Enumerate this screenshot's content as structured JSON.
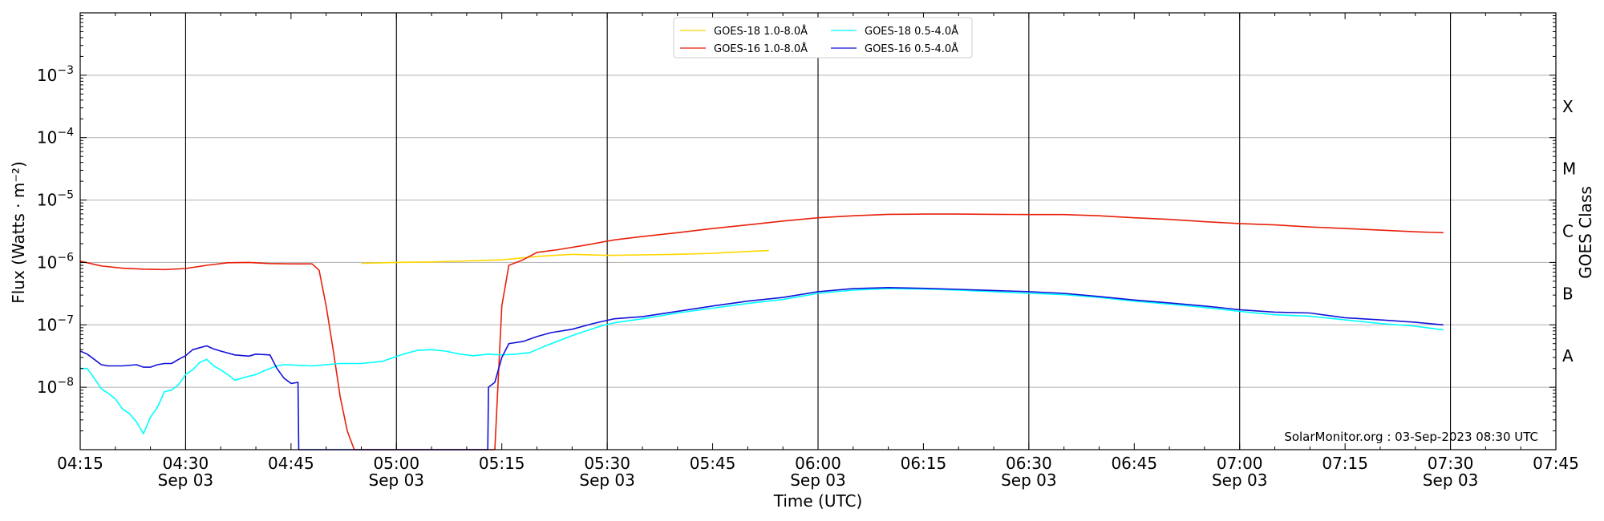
{
  "chart_data": {
    "type": "line",
    "xlabel": "Time (UTC)",
    "ylabel": "Flux (Watts · m⁻²)",
    "right_label": "GOES Class",
    "credit": "SolarMonitor.org : 03-Sep-2023 08:30 UTC",
    "x_unit": "minutes past 04:15 UTC, 03-Sep-2023",
    "xlim": [
      0,
      210
    ],
    "ylim": [
      1e-09,
      0.01
    ],
    "yscale": "log",
    "x_ticks": [
      {
        "x": 0,
        "time": "04:15",
        "date": ""
      },
      {
        "x": 15,
        "time": "04:30",
        "date": "Sep 03"
      },
      {
        "x": 30,
        "time": "04:45",
        "date": ""
      },
      {
        "x": 45,
        "time": "05:00",
        "date": "Sep 03"
      },
      {
        "x": 60,
        "time": "05:15",
        "date": ""
      },
      {
        "x": 75,
        "time": "05:30",
        "date": "Sep 03"
      },
      {
        "x": 90,
        "time": "05:45",
        "date": ""
      },
      {
        "x": 105,
        "time": "06:00",
        "date": "Sep 03"
      },
      {
        "x": 120,
        "time": "06:15",
        "date": ""
      },
      {
        "x": 135,
        "time": "06:30",
        "date": "Sep 03"
      },
      {
        "x": 150,
        "time": "06:45",
        "date": ""
      },
      {
        "x": 165,
        "time": "07:00",
        "date": "Sep 03"
      },
      {
        "x": 180,
        "time": "07:15",
        "date": ""
      },
      {
        "x": 195,
        "time": "07:30",
        "date": "Sep 03"
      },
      {
        "x": 210,
        "time": "07:45",
        "date": ""
      }
    ],
    "vertical_lines_x": [
      15,
      45,
      75,
      105,
      135,
      165,
      195
    ],
    "y_ticks": [
      {
        "value": 1e-08,
        "base": "10",
        "exp": "−8"
      },
      {
        "value": 1e-07,
        "base": "10",
        "exp": "−7"
      },
      {
        "value": 1e-06,
        "base": "10",
        "exp": "−6"
      },
      {
        "value": 1e-05,
        "base": "10",
        "exp": "−5"
      },
      {
        "value": 0.0001,
        "base": "10",
        "exp": "−4"
      },
      {
        "value": 0.001,
        "base": "10",
        "exp": "−3"
      }
    ],
    "grid_y": [
      1e-08,
      1e-07,
      1e-06,
      1e-05,
      0.0001,
      0.001
    ],
    "goes_classes": [
      {
        "label": "A",
        "value": 3.16e-08
      },
      {
        "label": "B",
        "value": 3.16e-07
      },
      {
        "label": "C",
        "value": 3.16e-06
      },
      {
        "label": "M",
        "value": 3.16e-05
      },
      {
        "label": "X",
        "value": 0.000316
      }
    ],
    "legend_position": "top-center",
    "series": [
      {
        "name": "GOES-18 1.0-8.0Å",
        "color": "#ffd700",
        "points": [
          [
            40,
            9.7e-07
          ],
          [
            45,
            1e-06
          ],
          [
            50,
            1.02e-06
          ],
          [
            55,
            1.06e-06
          ],
          [
            60,
            1.1e-06
          ],
          [
            65,
            1.25e-06
          ],
          [
            70,
            1.35e-06
          ],
          [
            75,
            1.3e-06
          ],
          [
            80,
            1.32e-06
          ],
          [
            85,
            1.35e-06
          ],
          [
            90,
            1.4e-06
          ],
          [
            95,
            1.5e-06
          ],
          [
            98,
            1.55e-06
          ]
        ]
      },
      {
        "name": "GOES-16 1.0-8.0Å",
        "color": "#e8200b",
        "points": [
          [
            0,
            1.05e-06
          ],
          [
            3,
            8.8e-07
          ],
          [
            6,
            8.1e-07
          ],
          [
            9,
            7.8e-07
          ],
          [
            12,
            7.7e-07
          ],
          [
            15,
            8e-07
          ],
          [
            18,
            9e-07
          ],
          [
            21,
            9.9e-07
          ],
          [
            24,
            1e-06
          ],
          [
            27,
            9.6e-07
          ],
          [
            30,
            9.5e-07
          ],
          [
            33,
            9.5e-07
          ],
          [
            34,
            7.5e-07
          ],
          [
            35,
            2e-07
          ],
          [
            36,
            4e-08
          ],
          [
            37,
            7e-09
          ],
          [
            38,
            2e-09
          ],
          [
            39,
            1e-09
          ],
          [
            59,
            1e-09
          ],
          [
            60,
            2e-07
          ],
          [
            61,
            9e-07
          ],
          [
            63,
            1.1e-06
          ],
          [
            65,
            1.45e-06
          ],
          [
            68,
            1.6e-06
          ],
          [
            72,
            1.9e-06
          ],
          [
            76,
            2.3e-06
          ],
          [
            80,
            2.6e-06
          ],
          [
            85,
            3e-06
          ],
          [
            90,
            3.5e-06
          ],
          [
            95,
            4e-06
          ],
          [
            100,
            4.6e-06
          ],
          [
            105,
            5.2e-06
          ],
          [
            110,
            5.6e-06
          ],
          [
            115,
            5.9e-06
          ],
          [
            120,
            5.95e-06
          ],
          [
            125,
            5.95e-06
          ],
          [
            130,
            5.9e-06
          ],
          [
            135,
            5.85e-06
          ],
          [
            140,
            5.85e-06
          ],
          [
            145,
            5.6e-06
          ],
          [
            150,
            5.2e-06
          ],
          [
            155,
            4.9e-06
          ],
          [
            160,
            4.5e-06
          ],
          [
            165,
            4.2e-06
          ],
          [
            170,
            4e-06
          ],
          [
            175,
            3.7e-06
          ],
          [
            180,
            3.5e-06
          ],
          [
            185,
            3.3e-06
          ],
          [
            190,
            3.1e-06
          ],
          [
            194,
            3e-06
          ]
        ]
      },
      {
        "name": "GOES-18 0.5-4.0Å",
        "color": "#00ffff",
        "points": [
          [
            0,
            2e-08
          ],
          [
            1,
            2e-08
          ],
          [
            2,
            1.4e-08
          ],
          [
            3,
            9.5e-09
          ],
          [
            4,
            8e-09
          ],
          [
            5,
            6.5e-09
          ],
          [
            6,
            4.5e-09
          ],
          [
            7,
            3.8e-09
          ],
          [
            8,
            2.8e-09
          ],
          [
            9,
            1.8e-09
          ],
          [
            10,
            3.3e-09
          ],
          [
            11,
            4.8e-09
          ],
          [
            12,
            8.5e-09
          ],
          [
            13,
            9e-09
          ],
          [
            14,
            1.1e-08
          ],
          [
            15,
            1.6e-08
          ],
          [
            16,
            1.9e-08
          ],
          [
            17,
            2.5e-08
          ],
          [
            18,
            2.8e-08
          ],
          [
            19,
            2.2e-08
          ],
          [
            20,
            1.9e-08
          ],
          [
            21,
            1.6e-08
          ],
          [
            22,
            1.3e-08
          ],
          [
            23,
            1.4e-08
          ],
          [
            24,
            1.5e-08
          ],
          [
            25,
            1.6e-08
          ],
          [
            26,
            1.8e-08
          ],
          [
            27,
            2e-08
          ],
          [
            28,
            2.2e-08
          ],
          [
            29,
            2.3e-08
          ],
          [
            31,
            2.25e-08
          ],
          [
            33,
            2.2e-08
          ],
          [
            35,
            2.3e-08
          ],
          [
            37,
            2.4e-08
          ],
          [
            40,
            2.4e-08
          ],
          [
            43,
            2.6e-08
          ],
          [
            46,
            3.4e-08
          ],
          [
            48,
            3.9e-08
          ],
          [
            50,
            4e-08
          ],
          [
            52,
            3.8e-08
          ],
          [
            54,
            3.4e-08
          ],
          [
            56,
            3.2e-08
          ],
          [
            58,
            3.4e-08
          ],
          [
            60,
            3.3e-08
          ],
          [
            62,
            3.4e-08
          ],
          [
            64,
            3.6e-08
          ],
          [
            66,
            4.5e-08
          ],
          [
            68,
            5.5e-08
          ],
          [
            70,
            6.7e-08
          ],
          [
            72,
            8e-08
          ],
          [
            74,
            9.5e-08
          ],
          [
            76,
            1.08e-07
          ],
          [
            80,
            1.25e-07
          ],
          [
            85,
            1.55e-07
          ],
          [
            90,
            1.85e-07
          ],
          [
            95,
            2.2e-07
          ],
          [
            100,
            2.55e-07
          ],
          [
            105,
            3.2e-07
          ],
          [
            110,
            3.6e-07
          ],
          [
            115,
            3.8e-07
          ],
          [
            120,
            3.75e-07
          ],
          [
            125,
            3.6e-07
          ],
          [
            130,
            3.4e-07
          ],
          [
            135,
            3.2e-07
          ],
          [
            140,
            3.05e-07
          ],
          [
            145,
            2.75e-07
          ],
          [
            150,
            2.4e-07
          ],
          [
            155,
            2.15e-07
          ],
          [
            160,
            1.9e-07
          ],
          [
            165,
            1.65e-07
          ],
          [
            170,
            1.45e-07
          ],
          [
            175,
            1.38e-07
          ],
          [
            180,
            1.2e-07
          ],
          [
            185,
            1.05e-07
          ],
          [
            190,
            9.5e-08
          ],
          [
            194,
            8.3e-08
          ]
        ]
      },
      {
        "name": "GOES-16 0.5-4.0Å",
        "color": "#1212d8",
        "points": [
          [
            0,
            3.8e-08
          ],
          [
            1,
            3.4e-08
          ],
          [
            2,
            2.8e-08
          ],
          [
            3,
            2.3e-08
          ],
          [
            4,
            2.2e-08
          ],
          [
            6,
            2.2e-08
          ],
          [
            8,
            2.3e-08
          ],
          [
            9,
            2.1e-08
          ],
          [
            10,
            2.1e-08
          ],
          [
            11,
            2.3e-08
          ],
          [
            12,
            2.4e-08
          ],
          [
            13,
            2.4e-08
          ],
          [
            14,
            2.8e-08
          ],
          [
            15,
            3.2e-08
          ],
          [
            16,
            4e-08
          ],
          [
            17,
            4.3e-08
          ],
          [
            18,
            4.6e-08
          ],
          [
            19,
            4.1e-08
          ],
          [
            20,
            3.8e-08
          ],
          [
            22,
            3.3e-08
          ],
          [
            24,
            3.15e-08
          ],
          [
            25,
            3.4e-08
          ],
          [
            27,
            3.3e-08
          ],
          [
            28,
            2e-08
          ],
          [
            29,
            1.4e-08
          ],
          [
            30,
            1.15e-08
          ],
          [
            31,
            1.2e-08
          ],
          [
            31.1,
            1e-09
          ],
          [
            58,
            1e-09
          ],
          [
            58.1,
            1e-08
          ],
          [
            59,
            1.2e-08
          ],
          [
            60,
            3e-08
          ],
          [
            61,
            5e-08
          ],
          [
            63,
            5.4e-08
          ],
          [
            65,
            6.5e-08
          ],
          [
            67,
            7.5e-08
          ],
          [
            70,
            8.5e-08
          ],
          [
            73,
            1.05e-07
          ],
          [
            76,
            1.25e-07
          ],
          [
            80,
            1.35e-07
          ],
          [
            85,
            1.65e-07
          ],
          [
            90,
            2e-07
          ],
          [
            95,
            2.4e-07
          ],
          [
            100,
            2.75e-07
          ],
          [
            105,
            3.4e-07
          ],
          [
            110,
            3.8e-07
          ],
          [
            115,
            3.95e-07
          ],
          [
            120,
            3.85e-07
          ],
          [
            125,
            3.7e-07
          ],
          [
            130,
            3.55e-07
          ],
          [
            135,
            3.4e-07
          ],
          [
            140,
            3.2e-07
          ],
          [
            145,
            2.85e-07
          ],
          [
            150,
            2.5e-07
          ],
          [
            155,
            2.25e-07
          ],
          [
            160,
            2e-07
          ],
          [
            165,
            1.75e-07
          ],
          [
            170,
            1.6e-07
          ],
          [
            175,
            1.55e-07
          ],
          [
            180,
            1.3e-07
          ],
          [
            185,
            1.2e-07
          ],
          [
            190,
            1.1e-07
          ],
          [
            194,
            1e-07
          ]
        ]
      }
    ]
  }
}
